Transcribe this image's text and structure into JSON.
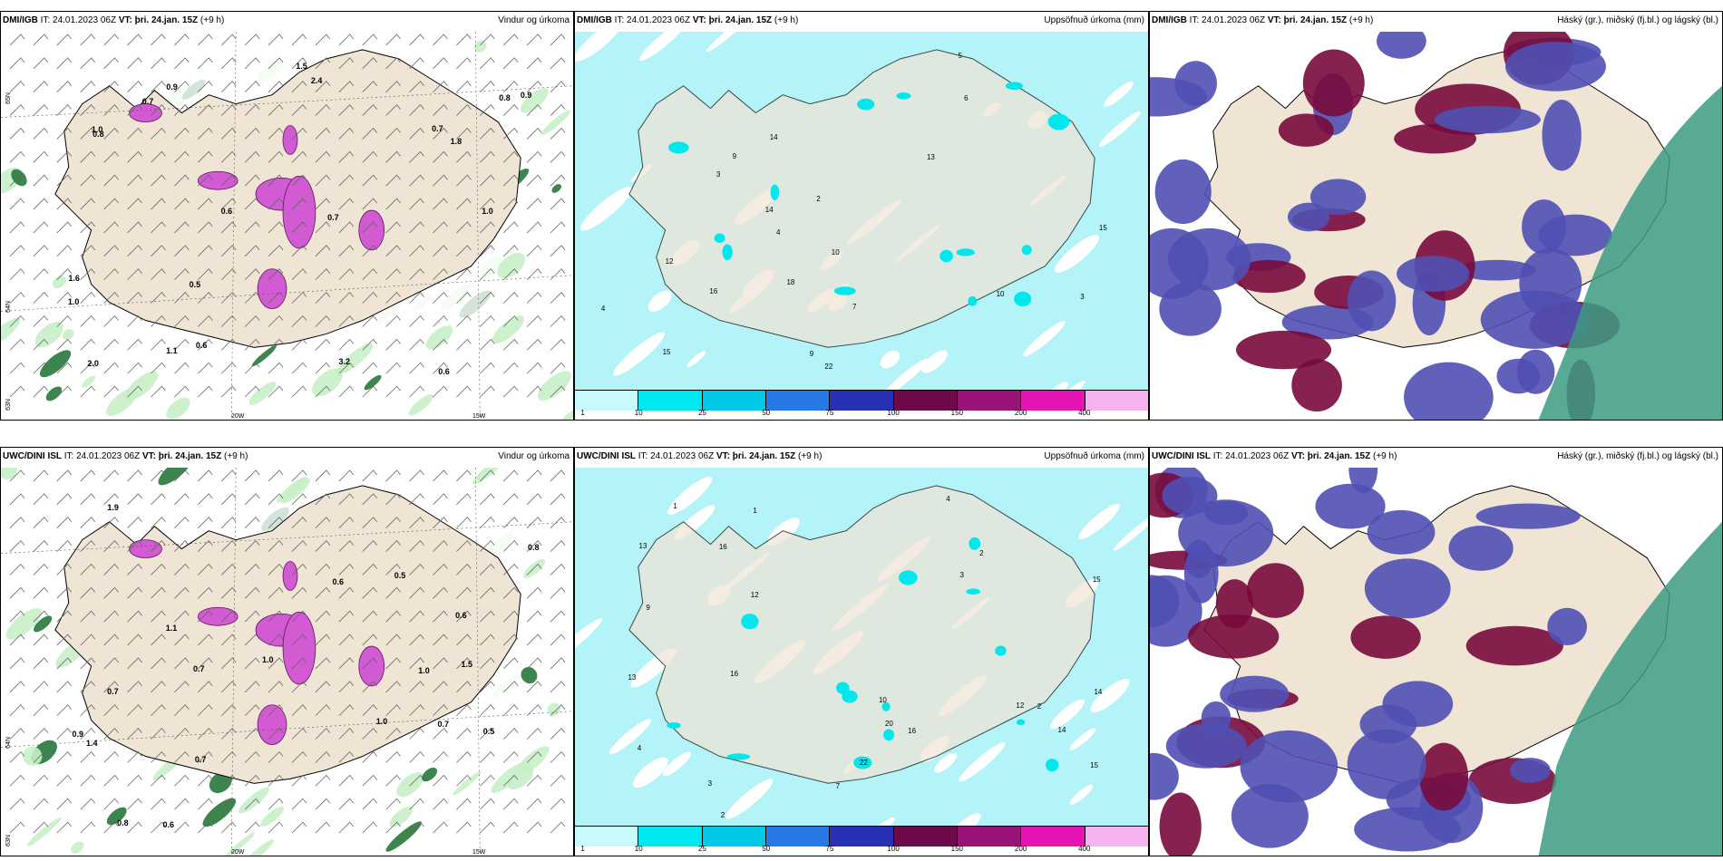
{
  "rows": [
    {
      "model": "DMI/IGB",
      "panels": [
        {
          "id": "wind",
          "param": "Vindur og úrkoma"
        },
        {
          "id": "precip",
          "param": "Uppsöfnuð úrkoma (mm)"
        },
        {
          "id": "cloud",
          "param": "Háský (gr.), miðský (fj.bl.) og lágský (bl.)"
        }
      ],
      "wind_values": [
        "0.7",
        "1.0",
        "0.6",
        "0.6",
        "1.0",
        "0.8",
        "0.7",
        "1.1",
        "0.5",
        "0.8",
        "0.7",
        "0.9",
        "1.0",
        "0.9",
        "0.6",
        "2.4",
        "2.0",
        "1.8",
        "1.5",
        "3.2",
        "1.6"
      ],
      "precip_values": [
        "16",
        "22",
        "4",
        "6",
        "9",
        "7",
        "15",
        "9",
        "13",
        "14",
        "14",
        "10",
        "12",
        "3",
        "3",
        "5",
        "2",
        "4",
        "18",
        "15",
        "10"
      ]
    },
    {
      "model": "UWC/DINI ISL",
      "panels": [
        {
          "id": "wind",
          "param": "Vindur og úrkoma"
        },
        {
          "id": "precip",
          "param": "Uppsöfnuð úrkoma (mm)"
        },
        {
          "id": "cloud",
          "param": "Háský (gr.), miðský (fj.bl.) og lágský (bl.)"
        }
      ],
      "wind_values": [
        "0.6",
        "1.0",
        "0.7",
        "0.7",
        "0.5",
        "0.5",
        "0.7",
        "0.8",
        "1.0",
        "0.9",
        "1.1",
        "0.7",
        "1.0",
        "1.4",
        "1.9",
        "0.6",
        "1.5",
        "0.8",
        "0.6"
      ],
      "precip_values": [
        "16",
        "16",
        "15",
        "2",
        "3",
        "4",
        "10",
        "14",
        "13",
        "22",
        "12",
        "12",
        "7",
        "9",
        "13",
        "2",
        "1",
        "3",
        "4",
        "1",
        "20",
        "16",
        "14",
        "15",
        "2"
      ]
    }
  ],
  "header": {
    "it_label": "IT:",
    "it_value": "24.01.2023 06Z",
    "vt_label": "VT:",
    "vt_value": "þri. 24.jan. 15Z",
    "lead": "(+9 h)"
  },
  "axis_labels": {
    "lat_65": "65N",
    "lat_64": "64N",
    "lat_63": "63N",
    "lon_20": "20W",
    "lon_15": "15W"
  },
  "colorbar": {
    "labels": [
      "1",
      "10",
      "25",
      "50",
      "75",
      "100",
      "150",
      "200",
      "400"
    ],
    "colors": [
      "#c8fafc",
      "#00e8ee",
      "#00c8e6",
      "#2878e6",
      "#2830b4",
      "#6e0a4a",
      "#9a1478",
      "#e614b4",
      "#f5b4f0"
    ]
  },
  "colors": {
    "land": "#f0e4d4",
    "sea": "#ffffff",
    "precip_light": "#b4f4f8",
    "green_light": "#c8f0c8",
    "green_dark": "#28783c",
    "magenta": "#d25ad2",
    "cloud_low": "#5050b4",
    "cloud_mid": "#780a3c",
    "cloud_high": "#3c9b82"
  }
}
